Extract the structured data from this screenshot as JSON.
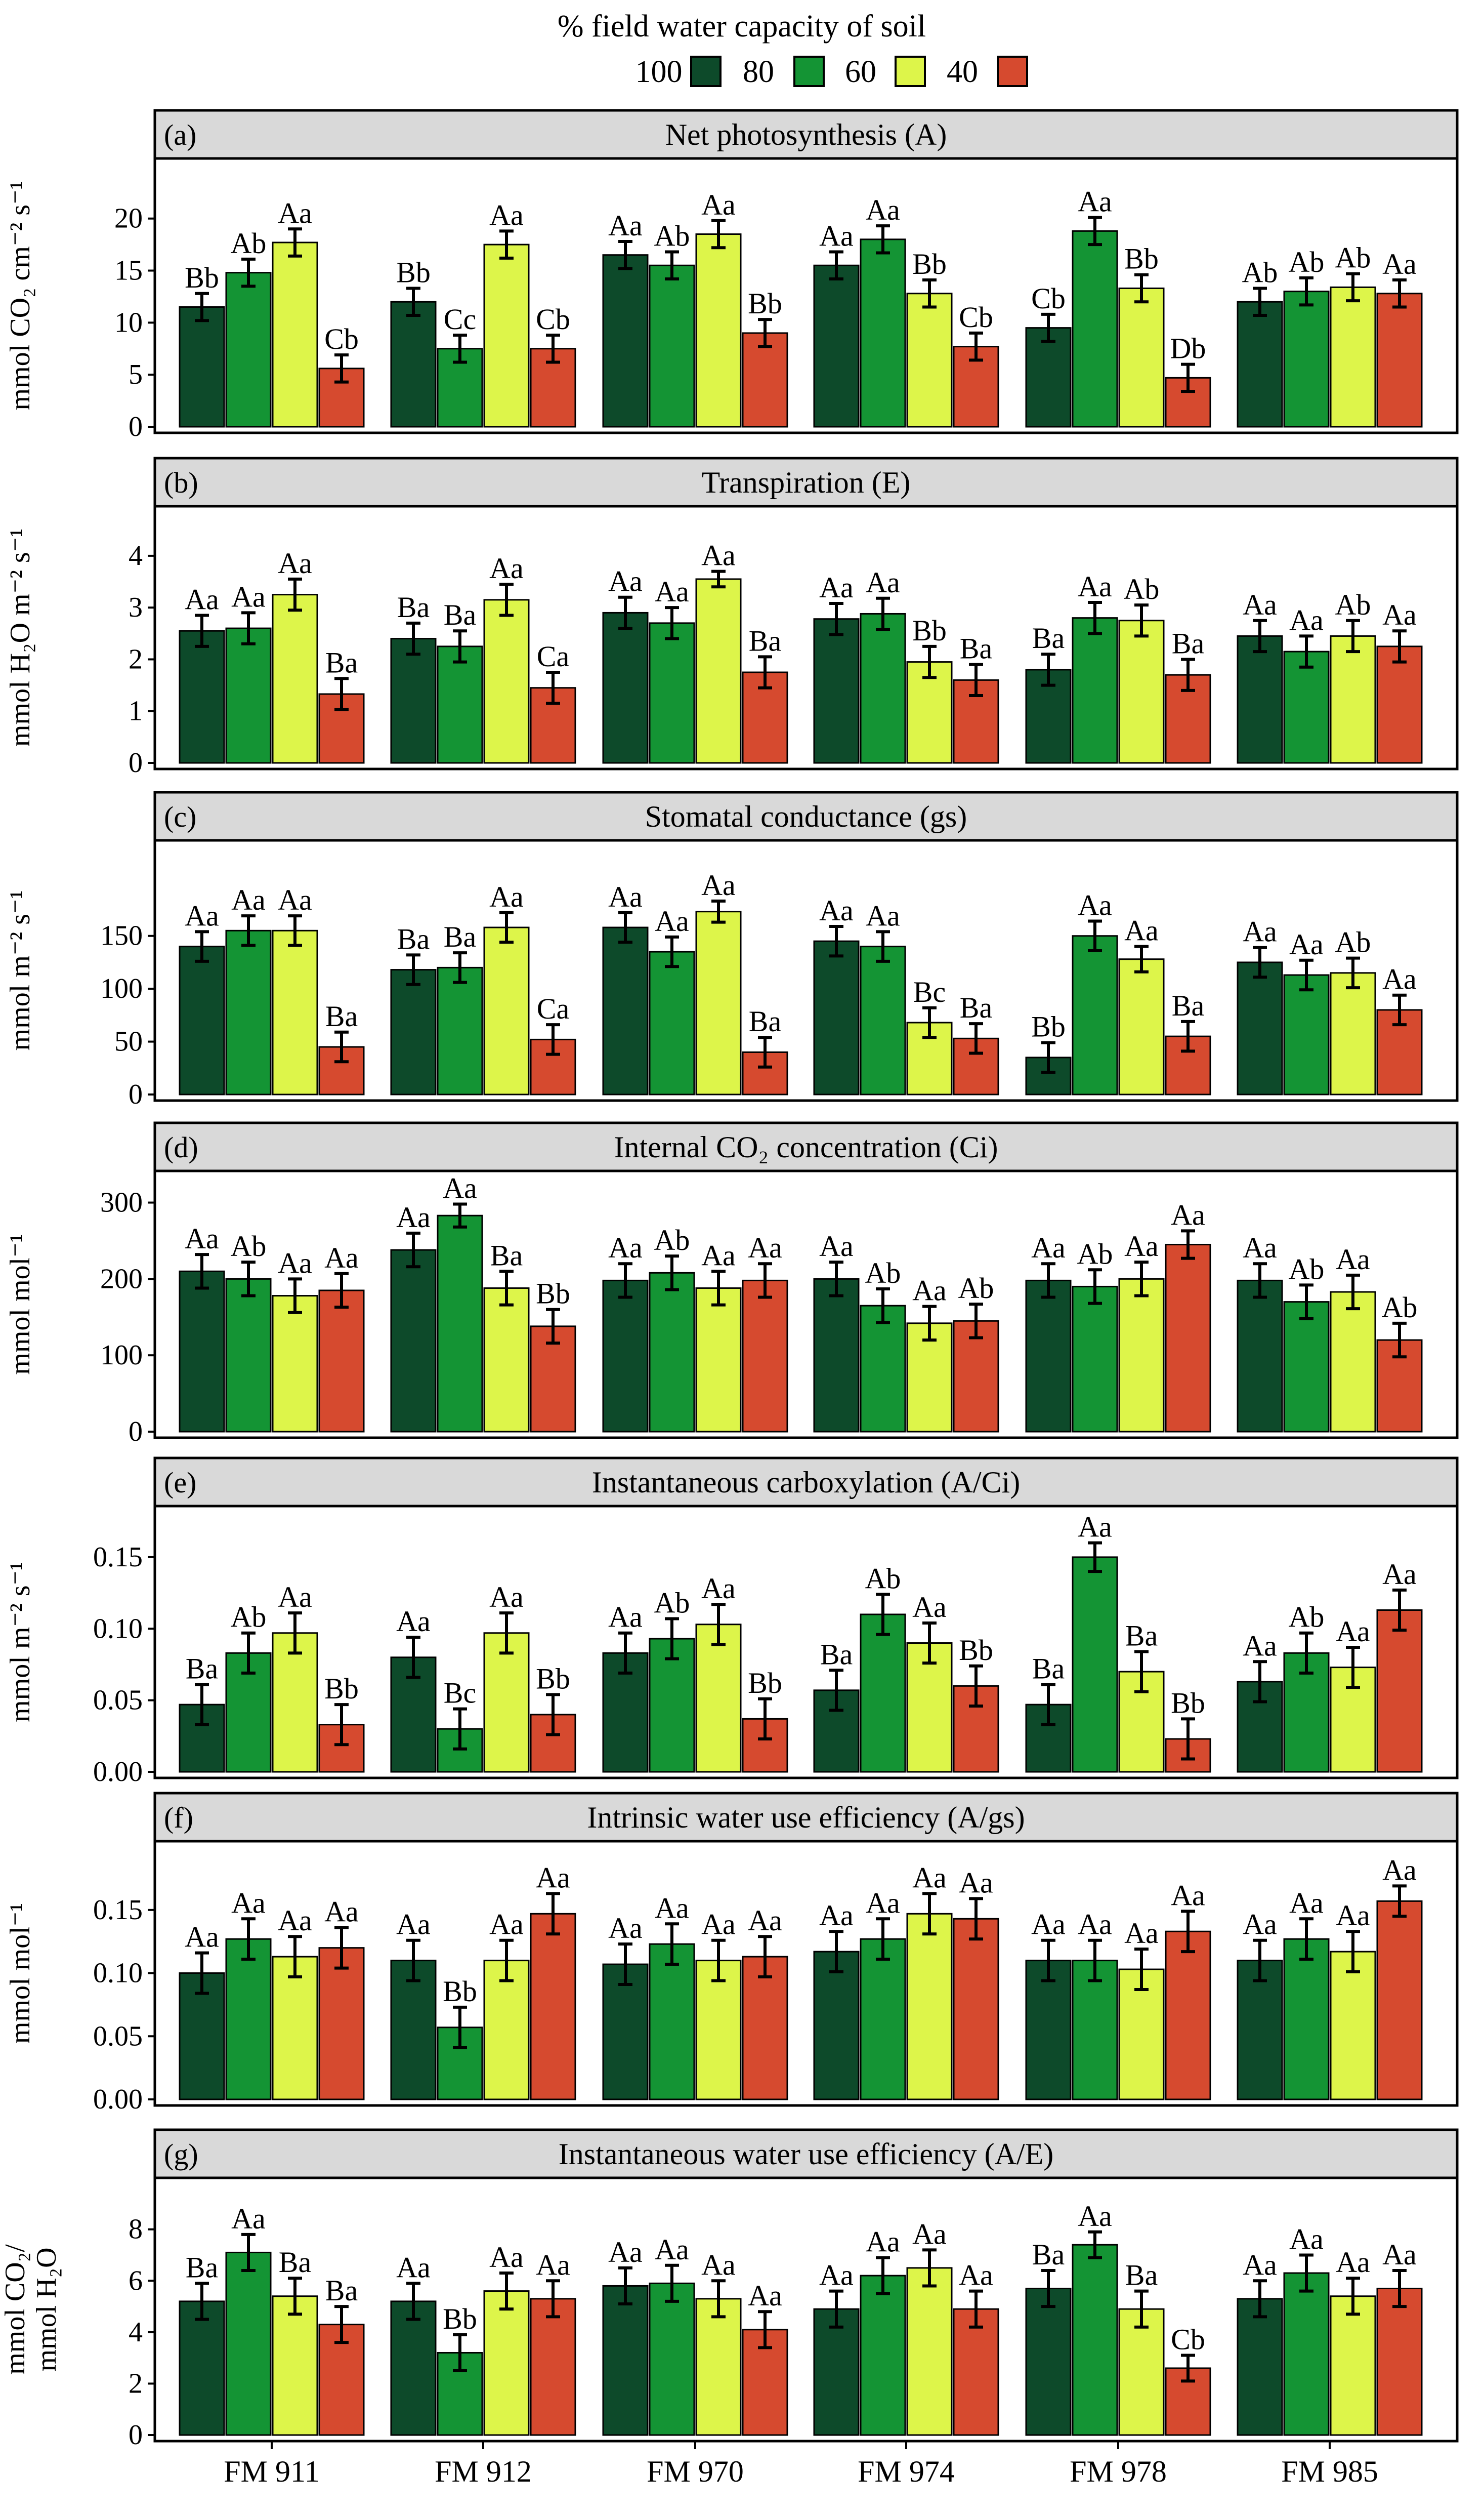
{
  "legend": {
    "title": "% field water capacity of soil",
    "items": [
      {
        "label": "100",
        "color": "#0d4a2a"
      },
      {
        "label": "80",
        "color": "#149434"
      },
      {
        "label": "60",
        "color": "#ddf54a"
      },
      {
        "label": "40",
        "color": "#d64a2f"
      }
    ]
  },
  "chart_data": {
    "type": "bar",
    "categories": [
      "FM 911",
      "FM 912",
      "FM 970",
      "FM 974",
      "FM 978",
      "FM 985"
    ],
    "series_names": [
      "100",
      "80",
      "60",
      "40"
    ],
    "colors": [
      "#0d4a2a",
      "#149434",
      "#ddf54a",
      "#d64a2f"
    ],
    "panels": [
      {
        "id": "a",
        "tag": "(a)",
        "title": "Net photosynthesis (A)",
        "ylabel": [
          "mmol CO₂  cm⁻² s⁻¹"
        ],
        "ylim": [
          0,
          23
        ],
        "yticks": [
          0,
          5,
          10,
          15,
          20
        ],
        "tick_labels": [
          "0",
          "5",
          "10",
          "15",
          "20"
        ],
        "values": [
          [
            11.5,
            14.8,
            17.7,
            5.6
          ],
          [
            12,
            7.5,
            17.5,
            7.5
          ],
          [
            16.5,
            15.5,
            18.5,
            9
          ],
          [
            15.5,
            18,
            12.8,
            7.7
          ],
          [
            9.5,
            18.8,
            13.3,
            4.7
          ],
          [
            12,
            13,
            13.4,
            12.8
          ]
        ],
        "errors": [
          [
            1.3,
            1.3,
            1.3,
            1.3
          ],
          [
            1.3,
            1.3,
            1.3,
            1.3
          ],
          [
            1.3,
            1.3,
            1.3,
            1.3
          ],
          [
            1.3,
            1.3,
            1.3,
            1.3
          ],
          [
            1.3,
            1.3,
            1.3,
            1.3
          ],
          [
            1.3,
            1.3,
            1.3,
            1.3
          ]
        ],
        "letters": [
          [
            "Bb",
            "Ab",
            "Aa",
            "Cb"
          ],
          [
            "Bb",
            "Cc",
            "Aa",
            "Cb"
          ],
          [
            "Aa",
            "Ab",
            "Aa",
            "Bb"
          ],
          [
            "Aa",
            "Aa",
            "Bb",
            "Cb"
          ],
          [
            "Cb",
            "Aa",
            "Bb",
            "Db"
          ],
          [
            "Ab",
            "Ab",
            "Ab",
            "Aa"
          ]
        ]
      },
      {
        "id": "b",
        "tag": "(b)",
        "title": "Transpiration (E)",
        "ylabel": [
          "mmol H₂O m⁻² s⁻¹"
        ],
        "ylim": [
          0,
          4.4
        ],
        "yticks": [
          0,
          1,
          2,
          3,
          4
        ],
        "tick_labels": [
          "0",
          "1",
          "2",
          "3",
          "4"
        ],
        "values": [
          [
            2.55,
            2.6,
            3.25,
            1.33
          ],
          [
            2.4,
            2.25,
            3.15,
            1.45
          ],
          [
            2.9,
            2.7,
            3.55,
            1.75
          ],
          [
            2.78,
            2.88,
            1.95,
            1.6
          ],
          [
            1.8,
            2.8,
            2.75,
            1.7
          ],
          [
            2.45,
            2.15,
            2.45,
            2.25
          ]
        ],
        "errors": [
          [
            0.3,
            0.3,
            0.3,
            0.3
          ],
          [
            0.3,
            0.3,
            0.3,
            0.3
          ],
          [
            0.3,
            0.3,
            0.15,
            0.3
          ],
          [
            0.3,
            0.3,
            0.3,
            0.3
          ],
          [
            0.3,
            0.3,
            0.3,
            0.3
          ],
          [
            0.3,
            0.3,
            0.3,
            0.3
          ]
        ],
        "letters": [
          [
            "Aa",
            "Aa",
            "Aa",
            "Ba"
          ],
          [
            "Ba",
            "Ba",
            "Aa",
            "Ca"
          ],
          [
            "Aa",
            "Aa",
            "Aa",
            "Ba"
          ],
          [
            "Aa",
            "Aa",
            "Bb",
            "Ba"
          ],
          [
            "Ba",
            "Aa",
            "Ab",
            "Ba"
          ],
          [
            "Aa",
            "Aa",
            "Ab",
            "Aa"
          ]
        ]
      },
      {
        "id": "c",
        "tag": "(c)",
        "title": "Stomatal conductance (gs)",
        "ylabel": [
          "mmol m⁻² s⁻¹"
        ],
        "ylim": [
          0,
          215
        ],
        "yticks": [
          0,
          50,
          100,
          150
        ],
        "tick_labels": [
          "0",
          "50",
          "100",
          "150"
        ],
        "values": [
          [
            140,
            155,
            155,
            45
          ],
          [
            118,
            120,
            158,
            52
          ],
          [
            158,
            135,
            173,
            40
          ],
          [
            145,
            140,
            68,
            53
          ],
          [
            35,
            150,
            128,
            55
          ],
          [
            125,
            113,
            115,
            80
          ]
        ],
        "errors": [
          [
            14,
            14,
            14,
            14
          ],
          [
            14,
            14,
            14,
            14
          ],
          [
            14,
            14,
            10,
            14
          ],
          [
            14,
            14,
            14,
            14
          ],
          [
            14,
            14,
            12,
            14
          ],
          [
            14,
            14,
            14,
            14
          ]
        ],
        "letters": [
          [
            "Aa",
            "Aa",
            "Aa",
            "Ba"
          ],
          [
            "Ba",
            "Ba",
            "Aa",
            "Ca"
          ],
          [
            "Aa",
            "Aa",
            "Aa",
            "Ba"
          ],
          [
            "Aa",
            "Aa",
            "Bc",
            "Ba"
          ],
          [
            "Bb",
            "Aa",
            "Aa",
            "Ba"
          ],
          [
            "Aa",
            "Aa",
            "Ab",
            "Aa"
          ]
        ]
      },
      {
        "id": "d",
        "tag": "(d)",
        "title": "Internal CO₂ concentration (Ci)",
        "ylabel": [
          "mmol mol⁻¹"
        ],
        "ylim": [
          0,
          305
        ],
        "yticks": [
          0,
          100,
          200,
          300
        ],
        "tick_labels": [
          "0",
          "100",
          "200",
          "300"
        ],
        "values": [
          [
            210,
            200,
            178,
            185
          ],
          [
            238,
            283,
            188,
            138
          ],
          [
            198,
            208,
            188,
            198
          ],
          [
            200,
            165,
            142,
            145
          ],
          [
            198,
            190,
            200,
            245
          ],
          [
            198,
            170,
            183,
            120
          ]
        ],
        "errors": [
          [
            22,
            22,
            22,
            22
          ],
          [
            22,
            15,
            22,
            22
          ],
          [
            22,
            22,
            22,
            22
          ],
          [
            22,
            22,
            22,
            22
          ],
          [
            22,
            22,
            22,
            18
          ],
          [
            22,
            22,
            22,
            22
          ]
        ],
        "letters": [
          [
            "Aa",
            "Ab",
            "Aa",
            "Aa"
          ],
          [
            "Aa",
            "Aa",
            "Ba",
            "Bb"
          ],
          [
            "Aa",
            "Ab",
            "Aa",
            "Aa"
          ],
          [
            "Aa",
            "Ab",
            "Aa",
            "Ab"
          ],
          [
            "Aa",
            "Ab",
            "Aa",
            "Aa"
          ],
          [
            "Aa",
            "Ab",
            "Aa",
            "Ab"
          ]
        ]
      },
      {
        "id": "e",
        "tag": "(e)",
        "title": "Instantaneous carboxylation (A/Ci)",
        "ylabel": [
          "mmol m⁻² s⁻¹"
        ],
        "ylim": [
          0,
          0.168
        ],
        "yticks": [
          0,
          0.05,
          0.1,
          0.15
        ],
        "tick_labels": [
          "0.00",
          "0.05",
          "0.10",
          "0.15"
        ],
        "values": [
          [
            0.047,
            0.083,
            0.097,
            0.033
          ],
          [
            0.08,
            0.03,
            0.097,
            0.04
          ],
          [
            0.083,
            0.093,
            0.103,
            0.037
          ],
          [
            0.057,
            0.11,
            0.09,
            0.06
          ],
          [
            0.047,
            0.15,
            0.07,
            0.023
          ],
          [
            0.063,
            0.083,
            0.073,
            0.113
          ]
        ],
        "errors": [
          [
            0.014,
            0.014,
            0.014,
            0.014
          ],
          [
            0.014,
            0.014,
            0.014,
            0.014
          ],
          [
            0.014,
            0.014,
            0.014,
            0.014
          ],
          [
            0.014,
            0.014,
            0.014,
            0.014
          ],
          [
            0.014,
            0.01,
            0.014,
            0.014
          ],
          [
            0.014,
            0.014,
            0.014,
            0.014
          ]
        ],
        "letters": [
          [
            "Ba",
            "Ab",
            "Aa",
            "Bb"
          ],
          [
            "Aa",
            "Bc",
            "Aa",
            "Bb"
          ],
          [
            "Aa",
            "Ab",
            "Aa",
            "Bb"
          ],
          [
            "Ba",
            "Ab",
            "Aa",
            "Bb"
          ],
          [
            "Ba",
            "Aa",
            "Ba",
            "Bb"
          ],
          [
            "Aa",
            "Ab",
            "Aa",
            "Aa"
          ]
        ]
      },
      {
        "id": "f",
        "tag": "(f)",
        "title": "Intrinsic water use efficiency (A/gs)",
        "ylabel": [
          "mmol mol⁻¹"
        ],
        "ylim": [
          0,
          0.182
        ],
        "yticks": [
          0,
          0.05,
          0.1,
          0.15
        ],
        "tick_labels": [
          "0.00",
          "0.05",
          "0.10",
          "0.15"
        ],
        "values": [
          [
            0.1,
            0.127,
            0.113,
            0.12
          ],
          [
            0.11,
            0.057,
            0.11,
            0.147
          ],
          [
            0.107,
            0.123,
            0.11,
            0.113
          ],
          [
            0.117,
            0.127,
            0.147,
            0.143
          ],
          [
            0.11,
            0.11,
            0.103,
            0.133
          ],
          [
            0.11,
            0.127,
            0.117,
            0.157
          ]
        ],
        "errors": [
          [
            0.016,
            0.016,
            0.016,
            0.016
          ],
          [
            0.016,
            0.016,
            0.016,
            0.016
          ],
          [
            0.016,
            0.016,
            0.016,
            0.016
          ],
          [
            0.016,
            0.016,
            0.016,
            0.016
          ],
          [
            0.016,
            0.016,
            0.016,
            0.016
          ],
          [
            0.016,
            0.016,
            0.016,
            0.012
          ]
        ],
        "letters": [
          [
            "Aa",
            "Aa",
            "Aa",
            "Aa"
          ],
          [
            "Aa",
            "Bb",
            "Aa",
            "Aa"
          ],
          [
            "Aa",
            "Aa",
            "Aa",
            "Aa"
          ],
          [
            "Aa",
            "Aa",
            "Aa",
            "Aa"
          ],
          [
            "Aa",
            "Aa",
            "Aa",
            "Aa"
          ],
          [
            "Aa",
            "Aa",
            "Aa",
            "Aa"
          ]
        ]
      },
      {
        "id": "g",
        "tag": "(g)",
        "title": "Instantaneous water use efficiency (A/E)",
        "ylabel": [
          "mmol CO₂/",
          "mmol H₂O"
        ],
        "ylim": [
          0,
          8.9
        ],
        "yticks": [
          0,
          2,
          4,
          6,
          8
        ],
        "tick_labels": [
          "0",
          "2",
          "4",
          "6",
          "8"
        ],
        "values": [
          [
            5.2,
            7.1,
            5.4,
            4.3
          ],
          [
            5.2,
            3.2,
            5.6,
            5.3
          ],
          [
            5.8,
            5.9,
            5.3,
            4.1
          ],
          [
            4.9,
            6.2,
            6.5,
            4.9
          ],
          [
            5.7,
            7.4,
            4.9,
            2.6
          ],
          [
            5.3,
            6.3,
            5.4,
            5.7
          ]
        ],
        "errors": [
          [
            0.7,
            0.7,
            0.7,
            0.7
          ],
          [
            0.7,
            0.7,
            0.7,
            0.7
          ],
          [
            0.7,
            0.7,
            0.7,
            0.7
          ],
          [
            0.7,
            0.7,
            0.7,
            0.7
          ],
          [
            0.7,
            0.5,
            0.7,
            0.5
          ],
          [
            0.7,
            0.7,
            0.7,
            0.7
          ]
        ],
        "letters": [
          [
            "Ba",
            "Aa",
            "Ba",
            "Ba"
          ],
          [
            "Aa",
            "Bb",
            "Aa",
            "Aa"
          ],
          [
            "Aa",
            "Aa",
            "Aa",
            "Aa"
          ],
          [
            "Aa",
            "Aa",
            "Aa",
            "Aa"
          ],
          [
            "Ba",
            "Aa",
            "Ba",
            "Cb"
          ],
          [
            "Aa",
            "Aa",
            "Aa",
            "Aa"
          ]
        ]
      }
    ]
  }
}
